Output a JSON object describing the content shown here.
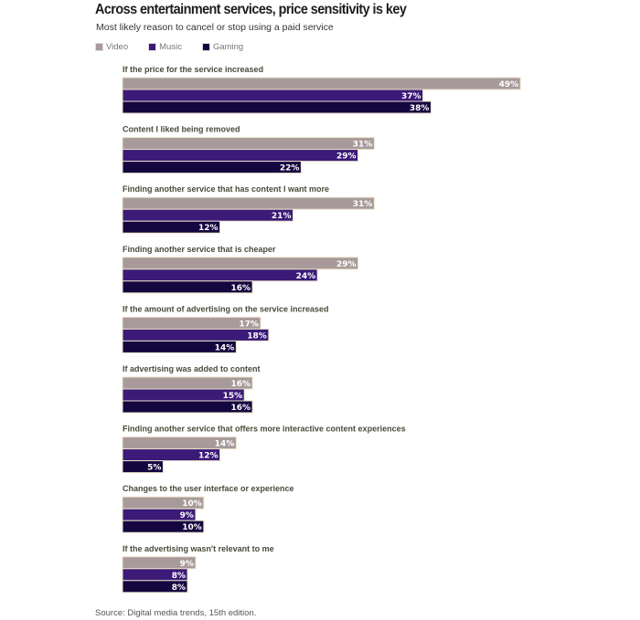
{
  "title": "Across entertainment services, price sensitivity is key",
  "subtitle": "Most likely reason to cancel or stop using a paid service",
  "source": "Source: Digital media trends, 15th edition.",
  "chart_data": {
    "type": "bar",
    "orientation": "horizontal",
    "title": "Across entertainment services, price sensitivity is key",
    "subtitle": "Most likely reason to cancel or stop using a paid service",
    "legend_placement": "top-left",
    "grid": false,
    "unit": "%",
    "categories": [
      "If the price for the service increased",
      "Content I liked being removed",
      "Finding another service that has content I want more",
      "Finding another service that is cheaper",
      "If the amount of advertising on the service increased",
      "If advertising was added to content",
      "Finding another service that offers more interactive content experiences",
      "Changes to the user interface or experience",
      "If the advertising wasn't relevant to me"
    ],
    "series": [
      {
        "name": "Video",
        "color": "#a89a9a",
        "values": [
          49,
          31,
          31,
          29,
          17,
          16,
          14,
          10,
          9
        ]
      },
      {
        "name": "Music",
        "color": "#3b1a78",
        "values": [
          37,
          29,
          21,
          24,
          18,
          15,
          12,
          9,
          8
        ]
      },
      {
        "name": "Gaming",
        "color": "#14063f",
        "values": [
          38,
          22,
          12,
          16,
          14,
          16,
          5,
          10,
          8
        ]
      }
    ]
  }
}
